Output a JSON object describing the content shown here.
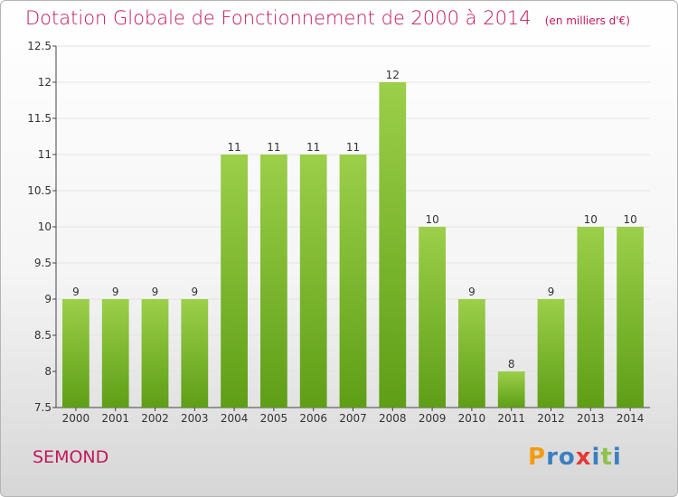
{
  "chart_data": {
    "type": "bar",
    "title": "Dotation Globale de Fonctionnement de 2000 à 2014",
    "subtitle": "(en milliers d'€)",
    "categories": [
      "2000",
      "2001",
      "2002",
      "2003",
      "2004",
      "2005",
      "2006",
      "2007",
      "2008",
      "2009",
      "2010",
      "2011",
      "2012",
      "2013",
      "2014"
    ],
    "values": [
      9,
      9,
      9,
      9,
      11,
      11,
      11,
      11,
      12,
      10,
      9,
      8,
      9,
      10,
      10
    ],
    "data_labels": [
      "9",
      "9",
      "9",
      "9",
      "11",
      "11",
      "11",
      "11",
      "12",
      "10",
      "9",
      "8",
      "9",
      "10",
      "10"
    ],
    "ylim": [
      7.5,
      12.5
    ],
    "yticks": [
      "7.5",
      "8",
      "8.5",
      "9",
      "9.5",
      "10",
      "10.5",
      "11",
      "11.5",
      "12",
      "12.5"
    ],
    "grid": true,
    "bar_color_top": "#9ccf4a",
    "bar_color_bottom": "#5e9e16"
  },
  "place_name": "SEMOND",
  "logo": {
    "letters": [
      "P",
      "r",
      "o",
      "x",
      "i",
      "t",
      "i"
    ],
    "colors": [
      "#f39c12",
      "#3a7fc1",
      "#3a7fc1",
      "#e53935",
      "#3a7fc1",
      "#8bc34a",
      "#3a7fc1"
    ]
  }
}
